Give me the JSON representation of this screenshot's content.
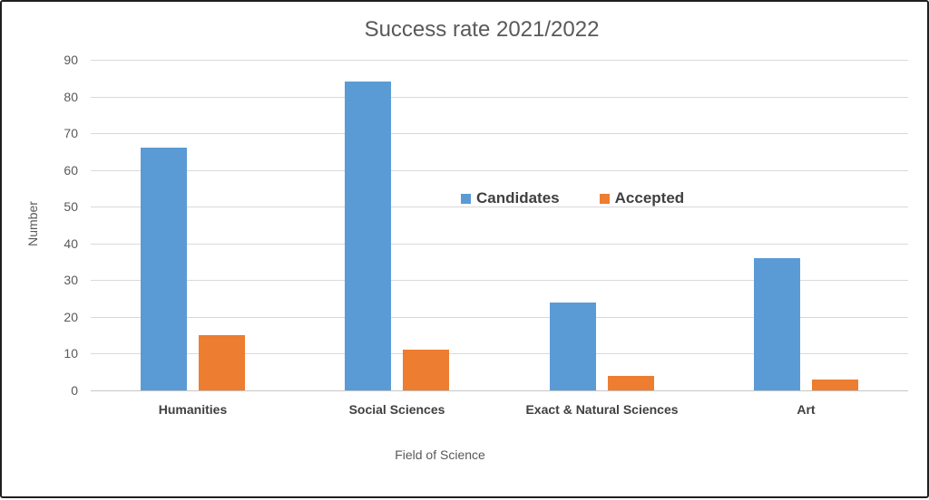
{
  "chart_data": {
    "type": "bar",
    "title": "Success rate 2021/2022",
    "xlabel": "Field of Science",
    "ylabel": "Number",
    "categories": [
      "Humanities",
      "Social Sciences",
      "Exact & Natural Sciences",
      "Art"
    ],
    "series": [
      {
        "name": "Candidates",
        "color": "#5B9BD5",
        "values": [
          66,
          84,
          24,
          36
        ]
      },
      {
        "name": "Accepted",
        "color": "#ED7D31",
        "values": [
          15,
          11,
          4,
          3
        ]
      }
    ],
    "ylim": [
      0,
      90
    ],
    "ytick_step": 10,
    "ytick_labels": [
      "0",
      "10",
      "20",
      "30",
      "40",
      "50",
      "60",
      "70",
      "80",
      "90"
    ],
    "grid": true,
    "legend_position": "inside-center",
    "colors": {
      "grid": "#D9D9D9",
      "axis_line": "#C6C6C6",
      "title_text": "#595959",
      "tick_text": "#595959",
      "category_text": "#404040",
      "legend_text": "#404040",
      "frame_border": "#1F1F1F",
      "background": "#FFFFFF"
    }
  }
}
